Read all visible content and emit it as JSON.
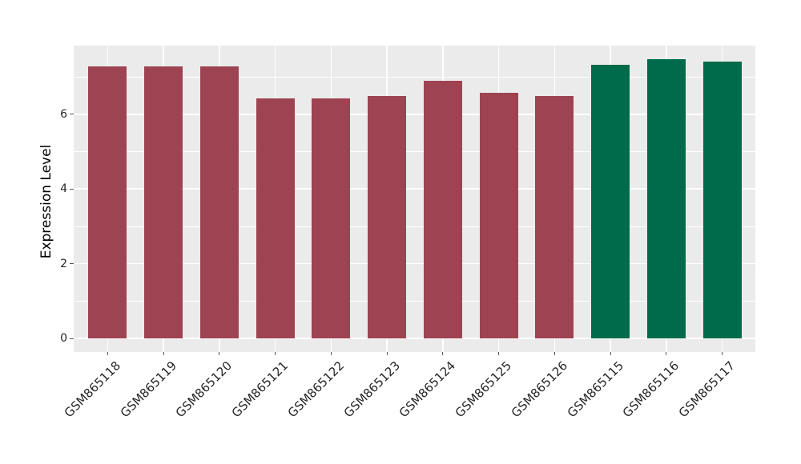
{
  "chart_data": {
    "type": "bar",
    "title": "",
    "xlabel": "",
    "ylabel": "Expression Level",
    "categories": [
      "GSM865118",
      "GSM865119",
      "GSM865120",
      "GSM865121",
      "GSM865122",
      "GSM865123",
      "GSM865124",
      "GSM865125",
      "GSM865126",
      "GSM865115",
      "GSM865116",
      "GSM865117"
    ],
    "values": [
      7.28,
      7.27,
      7.28,
      6.42,
      6.43,
      6.48,
      6.9,
      6.57,
      6.48,
      7.33,
      7.47,
      7.41
    ],
    "bar_colors": [
      "#9e4352",
      "#9e4352",
      "#9e4352",
      "#9e4352",
      "#9e4352",
      "#9e4352",
      "#9e4352",
      "#9e4352",
      "#9e4352",
      "#006b4a",
      "#006b4a",
      "#006b4a"
    ],
    "group_colors": {
      "left_group": "#9e4352",
      "right_group": "#006b4a"
    },
    "ytick_labels": [
      "0",
      "2",
      "4",
      "6"
    ],
    "ytick_values": [
      0,
      2,
      4,
      6
    ],
    "minor_ytick_values": [
      1,
      3,
      5,
      7
    ],
    "ylim": [
      -0.37,
      7.84
    ],
    "x_tick_rotation_deg": 45,
    "grid": true,
    "legend_position": "none",
    "colors": {
      "figure_bg": "#ffffff",
      "panel_bg": "#ebebeb",
      "grid": "#ffffff",
      "tick": "#555555",
      "tick_label": "#262626",
      "axis_title": "#000000"
    }
  }
}
